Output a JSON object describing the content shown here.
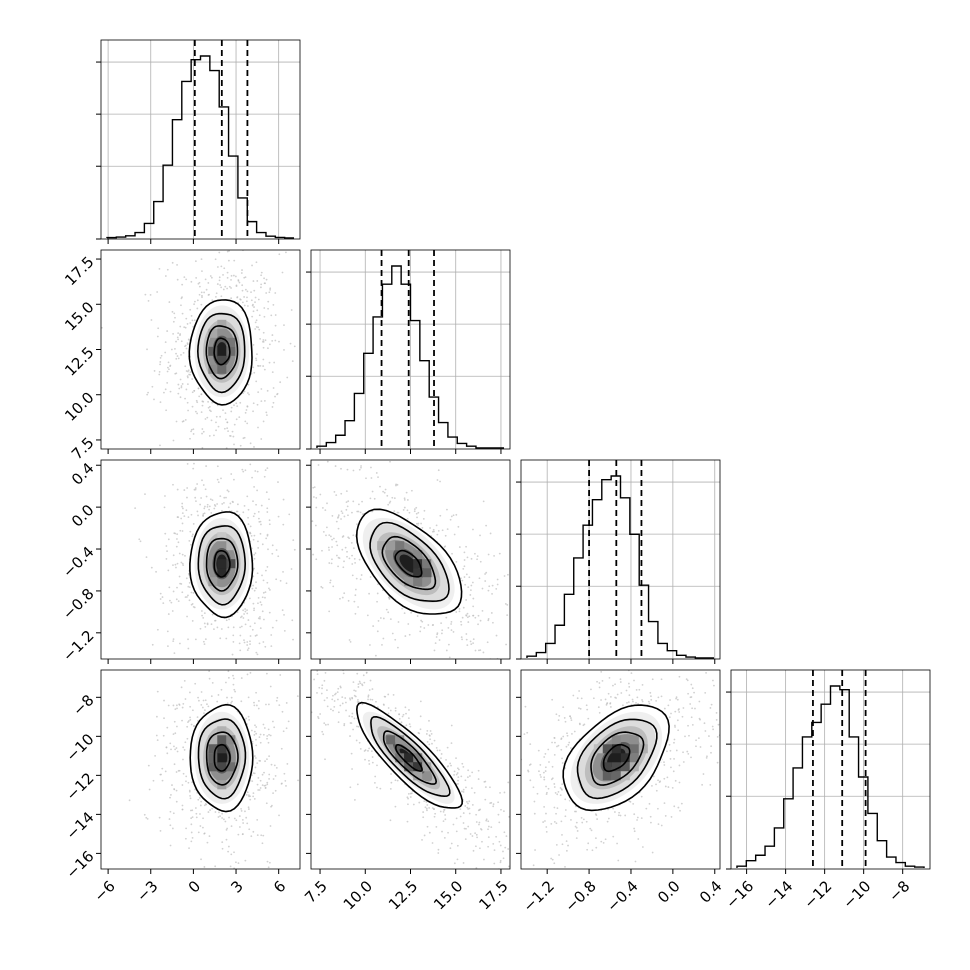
{
  "chart_data": {
    "type": "corner",
    "parameters": [
      {
        "index": 0,
        "range": [
          -6.5,
          7.5
        ],
        "ticks": [
          -6,
          -3,
          0,
          3,
          6
        ],
        "tick_labels": [
          "−6",
          "−3",
          "0",
          "3",
          "6"
        ],
        "quantiles": [
          0.1,
          2.0,
          3.8
        ],
        "mean": 2.0,
        "sd": 1.1
      },
      {
        "index": 1,
        "range": [
          7.0,
          18.0
        ],
        "ticks": [
          7.5,
          10.0,
          12.5,
          15.0,
          17.5
        ],
        "tick_labels": [
          "7.5",
          "10.0",
          "12.5",
          "15.0",
          "17.5"
        ],
        "quantiles": [
          10.9,
          12.4,
          13.8
        ],
        "mean": 12.4,
        "sd": 1.45
      },
      {
        "index": 2,
        "range": [
          -1.45,
          0.45
        ],
        "ticks": [
          -1.2,
          -0.8,
          -0.4,
          0.0,
          0.4
        ],
        "tick_labels": [
          "−1.2",
          "−0.8",
          "−0.4",
          "0.0",
          "0.4"
        ],
        "quantiles": [
          -0.8,
          -0.54,
          -0.3
        ],
        "mean": -0.54,
        "sd": 0.25
      },
      {
        "index": 3,
        "range": [
          -16.8,
          -6.6
        ],
        "ticks": [
          -16,
          -14,
          -12,
          -10,
          -8
        ],
        "tick_labels": [
          "−16",
          "−14",
          "−12",
          "−10",
          "−8"
        ],
        "quantiles": [
          -12.6,
          -11.1,
          -9.9
        ],
        "mean": -11.1,
        "sd": 1.35
      }
    ],
    "correlations": {
      "0-1": 0.0,
      "0-2": 0.0,
      "0-3": 0.0,
      "1-2": -0.55,
      "1-3": -0.85,
      "2-3": 0.45
    },
    "histograms": {
      "0": [
        0.002,
        0.005,
        0.012,
        0.03,
        0.08,
        0.2,
        0.4,
        0.65,
        0.86,
        0.98,
        1.0,
        0.92,
        0.72,
        0.45,
        0.22,
        0.09,
        0.03,
        0.01,
        0.003,
        0.0
      ],
      "1": [
        0.01,
        0.03,
        0.07,
        0.15,
        0.3,
        0.52,
        0.72,
        0.9,
        1.0,
        0.9,
        0.7,
        0.48,
        0.28,
        0.14,
        0.06,
        0.025,
        0.01,
        0.0,
        0.0,
        0.0
      ],
      "2": [
        0.01,
        0.03,
        0.08,
        0.18,
        0.35,
        0.55,
        0.73,
        0.87,
        0.98,
        1.0,
        0.88,
        0.68,
        0.4,
        0.2,
        0.08,
        0.04,
        0.015,
        0.005,
        0.0,
        0.0
      ],
      "3": [
        0.01,
        0.04,
        0.07,
        0.12,
        0.22,
        0.38,
        0.55,
        0.72,
        0.8,
        0.9,
        1.0,
        0.98,
        0.72,
        0.5,
        0.3,
        0.15,
        0.06,
        0.03,
        0.01,
        0.005
      ]
    },
    "contour_levels_sigma": [
      0.5,
      1.0,
      1.5,
      2.0
    ],
    "scatter_points_per_panel": 700,
    "grid": true,
    "line_color": "#000000",
    "density_color": "#000000",
    "point_color": "#bdbdbd"
  }
}
